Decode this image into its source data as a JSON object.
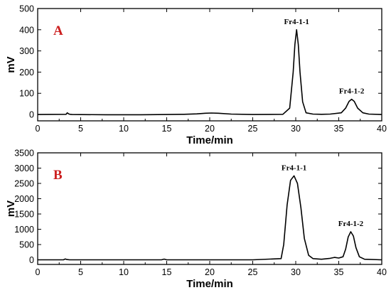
{
  "colors": {
    "panel_label": "#cc1f1f",
    "line": "#000000"
  },
  "chart_data": [
    {
      "type": "line",
      "panel_label": "A",
      "xlabel": "Time/min",
      "ylabel": "mV",
      "xlim": [
        0,
        40
      ],
      "ylim": [
        -30,
        500
      ],
      "xticks": [
        0,
        5,
        10,
        15,
        20,
        25,
        30,
        35,
        40
      ],
      "yticks": [
        0,
        100,
        200,
        300,
        400,
        500
      ],
      "grid": false,
      "series": [
        {
          "x": [
            0,
            3.3,
            3.45,
            3.6,
            3.75,
            4.0,
            8,
            12,
            15,
            17,
            18.5,
            19.5,
            20.2,
            21,
            22.5,
            25,
            28.5,
            29.3,
            29.7,
            29.9,
            30.1,
            30.3,
            30.5,
            30.8,
            31.2,
            32,
            33,
            34,
            35.3,
            35.8,
            36.2,
            36.5,
            36.8,
            37.2,
            37.8,
            38.5,
            40
          ],
          "y": [
            0,
            1,
            8,
            3,
            1,
            0,
            -1,
            -1,
            0,
            1,
            3,
            6,
            7,
            6,
            2,
            0,
            1,
            30,
            200,
            330,
            400,
            330,
            200,
            60,
            8,
            2,
            1,
            2,
            8,
            30,
            62,
            72,
            62,
            30,
            8,
            2,
            0
          ]
        }
      ],
      "annotations": [
        {
          "text": "Fr4-1-1",
          "x": 30.1,
          "y": 400
        },
        {
          "text": "Fr4-1-2",
          "x": 36.5,
          "y": 72
        }
      ]
    },
    {
      "type": "line",
      "panel_label": "B",
      "xlabel": "Time/min",
      "ylabel": "mV",
      "xlim": [
        0,
        40
      ],
      "ylim": [
        -150,
        3500
      ],
      "xticks": [
        0,
        5,
        10,
        15,
        20,
        25,
        30,
        35,
        40
      ],
      "yticks": [
        0,
        500,
        1000,
        1500,
        2000,
        2500,
        3000,
        3500
      ],
      "grid": false,
      "series": [
        {
          "x": [
            0,
            3.0,
            3.2,
            3.4,
            3.7,
            6,
            10,
            14.4,
            14.7,
            15.0,
            20,
            25,
            28.3,
            28.6,
            29.0,
            29.4,
            29.8,
            30.2,
            30.6,
            31.0,
            31.5,
            32,
            33,
            34,
            34.5,
            35.0,
            35.5,
            35.8,
            36.1,
            36.4,
            36.7,
            37.0,
            37.4,
            38,
            40
          ],
          "y": [
            0,
            0,
            30,
            10,
            0,
            0,
            0,
            0,
            25,
            0,
            0,
            0,
            40,
            500,
            1800,
            2600,
            2750,
            2500,
            1700,
            700,
            150,
            40,
            20,
            50,
            80,
            60,
            100,
            350,
            750,
            920,
            780,
            400,
            100,
            20,
            0
          ]
        }
      ],
      "annotations": [
        {
          "text": "Fr4-1-1",
          "x": 29.8,
          "y": 2750
        },
        {
          "text": "Fr4-1-2",
          "x": 36.4,
          "y": 920
        }
      ]
    }
  ]
}
